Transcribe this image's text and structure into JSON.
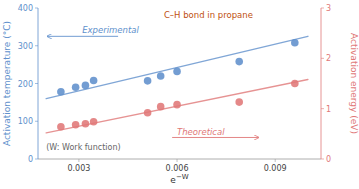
{
  "chart_data": {
    "type": "scatter",
    "xlabel": "e−W",
    "ylabel": "Activation temperature (°C)",
    "y2label": "Activation energy (eV)",
    "xlim": [
      0.00175,
      0.0104
    ],
    "xticks": [
      0.003,
      0.006,
      0.009
    ],
    "ylim": [
      0,
      400
    ],
    "yticks": [
      0,
      100,
      200,
      300,
      400
    ],
    "y2lim": [
      0,
      3
    ],
    "y2ticks": [
      0,
      1,
      2,
      3
    ],
    "grid": false,
    "series": [
      {
        "type": "scatter",
        "color": "#6090cc",
        "x": [
          0.00245,
          0.0029,
          0.0032,
          0.00345,
          0.0051,
          0.0055,
          0.006,
          0.0079,
          0.0096
        ],
        "values": [
          178,
          190,
          195,
          208,
          207,
          220,
          232,
          258,
          308
        ]
      },
      {
        "type": "scatter",
        "color": "#e07878",
        "axis": "y2",
        "x": [
          0.00245,
          0.0029,
          0.0032,
          0.00345,
          0.0051,
          0.0055,
          0.006,
          0.0079,
          0.0096
        ],
        "values": [
          0.64,
          0.68,
          0.7,
          0.74,
          0.92,
          1.04,
          1.08,
          1.13,
          1.5
        ]
      },
      {
        "type": "line",
        "color": "#6090cc",
        "x": [
          0.002,
          0.01
        ],
        "values": [
          160,
          325
        ]
      },
      {
        "type": "line",
        "color": "#e07878",
        "axis": "y2",
        "x": [
          0.002,
          0.01
        ],
        "values": [
          0.52,
          1.58
        ]
      }
    ],
    "annotations": [
      "Experimental",
      "Theoretical",
      "(W: Work function)",
      "C–H bond in propane"
    ]
  }
}
